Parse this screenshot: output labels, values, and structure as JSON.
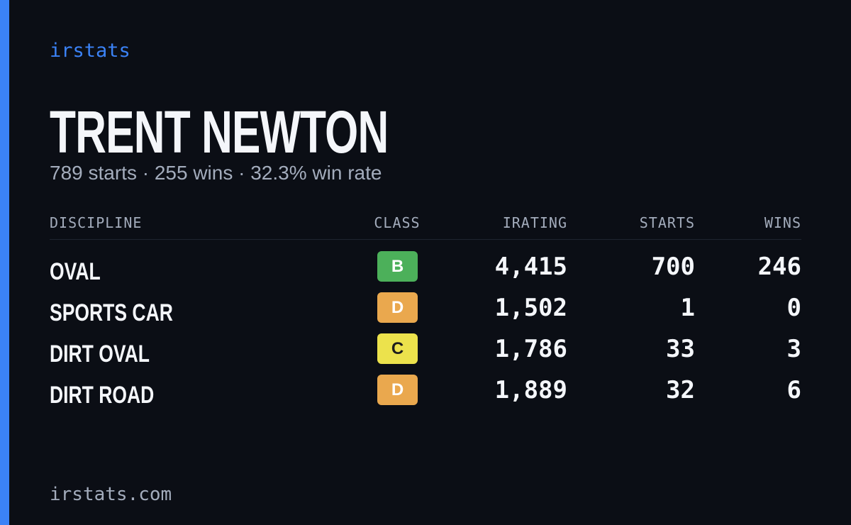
{
  "brand": "irstats",
  "driver": {
    "name": "TRENT NEWTON",
    "summary": "789 starts · 255 wins · 32.3% win rate"
  },
  "table": {
    "headers": [
      "DISCIPLINE",
      "CLASS",
      "IRATING",
      "STARTS",
      "WINS"
    ],
    "rows": [
      {
        "discipline": "OVAL",
        "class": "B",
        "class_color": "#4cb05a",
        "irating": "4,415",
        "starts": "700",
        "wins": "246"
      },
      {
        "discipline": "SPORTS CAR",
        "class": "D",
        "class_color": "#eaa84e",
        "irating": "1,502",
        "starts": "1",
        "wins": "0"
      },
      {
        "discipline": "DIRT OVAL",
        "class": "C",
        "class_color": "#ece24c",
        "irating": "1,786",
        "starts": "33",
        "wins": "3"
      },
      {
        "discipline": "DIRT ROAD",
        "class": "D",
        "class_color": "#eaa84e",
        "irating": "1,889",
        "starts": "32",
        "wins": "6"
      }
    ]
  },
  "footer": "irstats.com"
}
